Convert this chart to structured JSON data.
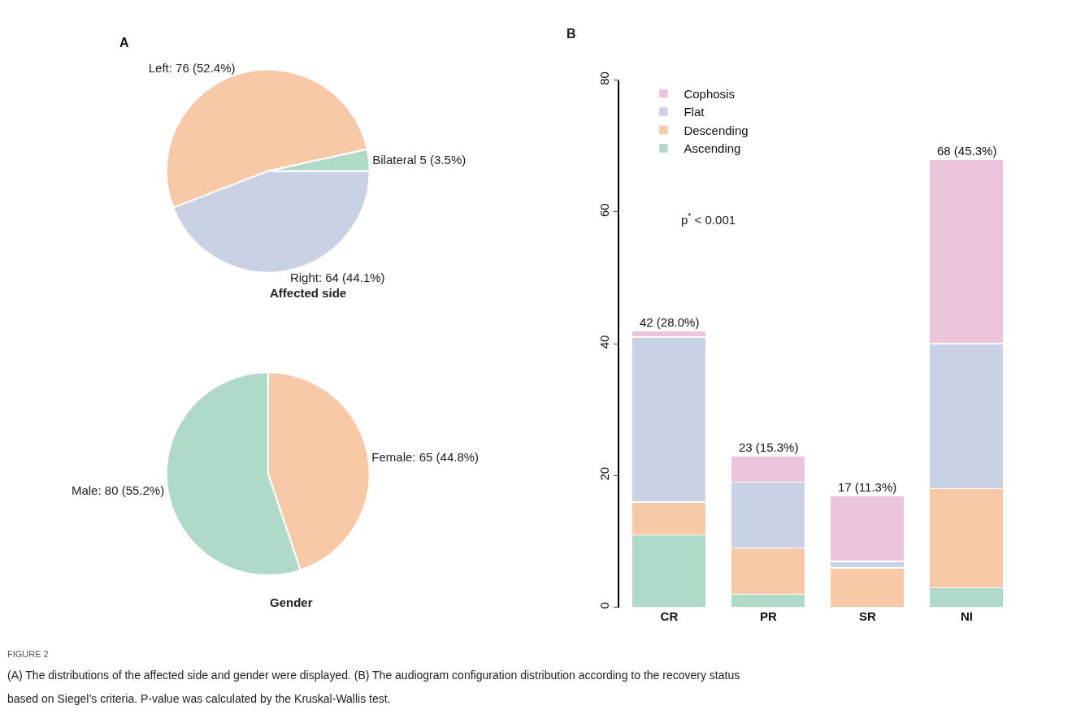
{
  "chart_data": [
    {
      "type": "pie",
      "title": "Affected side",
      "categories": [
        "Right: 64 (44.1%)",
        "Left: 76 (52.4%)",
        "Bilateral 5 (3.5%)"
      ],
      "values": [
        64,
        76,
        5
      ],
      "colors": [
        "#c9d2e5",
        "#f7c9a7",
        "#b0dac8"
      ],
      "annotations": [
        "A"
      ]
    },
    {
      "type": "pie",
      "title": "Gender",
      "categories": [
        "Female: 65 (44.8%)",
        "Male: 80 (55.2%)"
      ],
      "values": [
        65,
        80
      ],
      "colors": [
        "#f7c9a7",
        "#b0dac8"
      ]
    },
    {
      "type": "bar",
      "stacked": true,
      "categories": [
        "CR",
        "PR",
        "SR",
        "NI"
      ],
      "series": [
        {
          "name": "Ascending",
          "color": "#b0dac8",
          "values": [
            11,
            2,
            0,
            3
          ]
        },
        {
          "name": "Descending",
          "color": "#f7c9a7",
          "values": [
            5,
            7,
            6,
            15
          ]
        },
        {
          "name": "Flat",
          "color": "#c9d2e5",
          "values": [
            25,
            10,
            1,
            22
          ]
        },
        {
          "name": "Cophosis",
          "color": "#ecc5dc",
          "values": [
            1,
            4,
            10,
            28
          ]
        }
      ],
      "ylim": [
        0,
        80
      ],
      "yticks": [
        0,
        20,
        40,
        60,
        80
      ],
      "legend": "top left",
      "totals": [
        "42 (28.0%)",
        "23 (15.3%)",
        "17 (11.3%)",
        "68 (45.3%)"
      ],
      "annotations": [
        "B",
        "p$^{*}$ < 0.001",
        "FIGURE 2",
        "(A) The distributions of the affected side and gender were displayed. (B) The audiogram configuration distribution according to the recovery status",
        "based on Siegel’s criteria. P-value was calculated by the Kruskal-Wallis test."
      ]
    }
  ]
}
